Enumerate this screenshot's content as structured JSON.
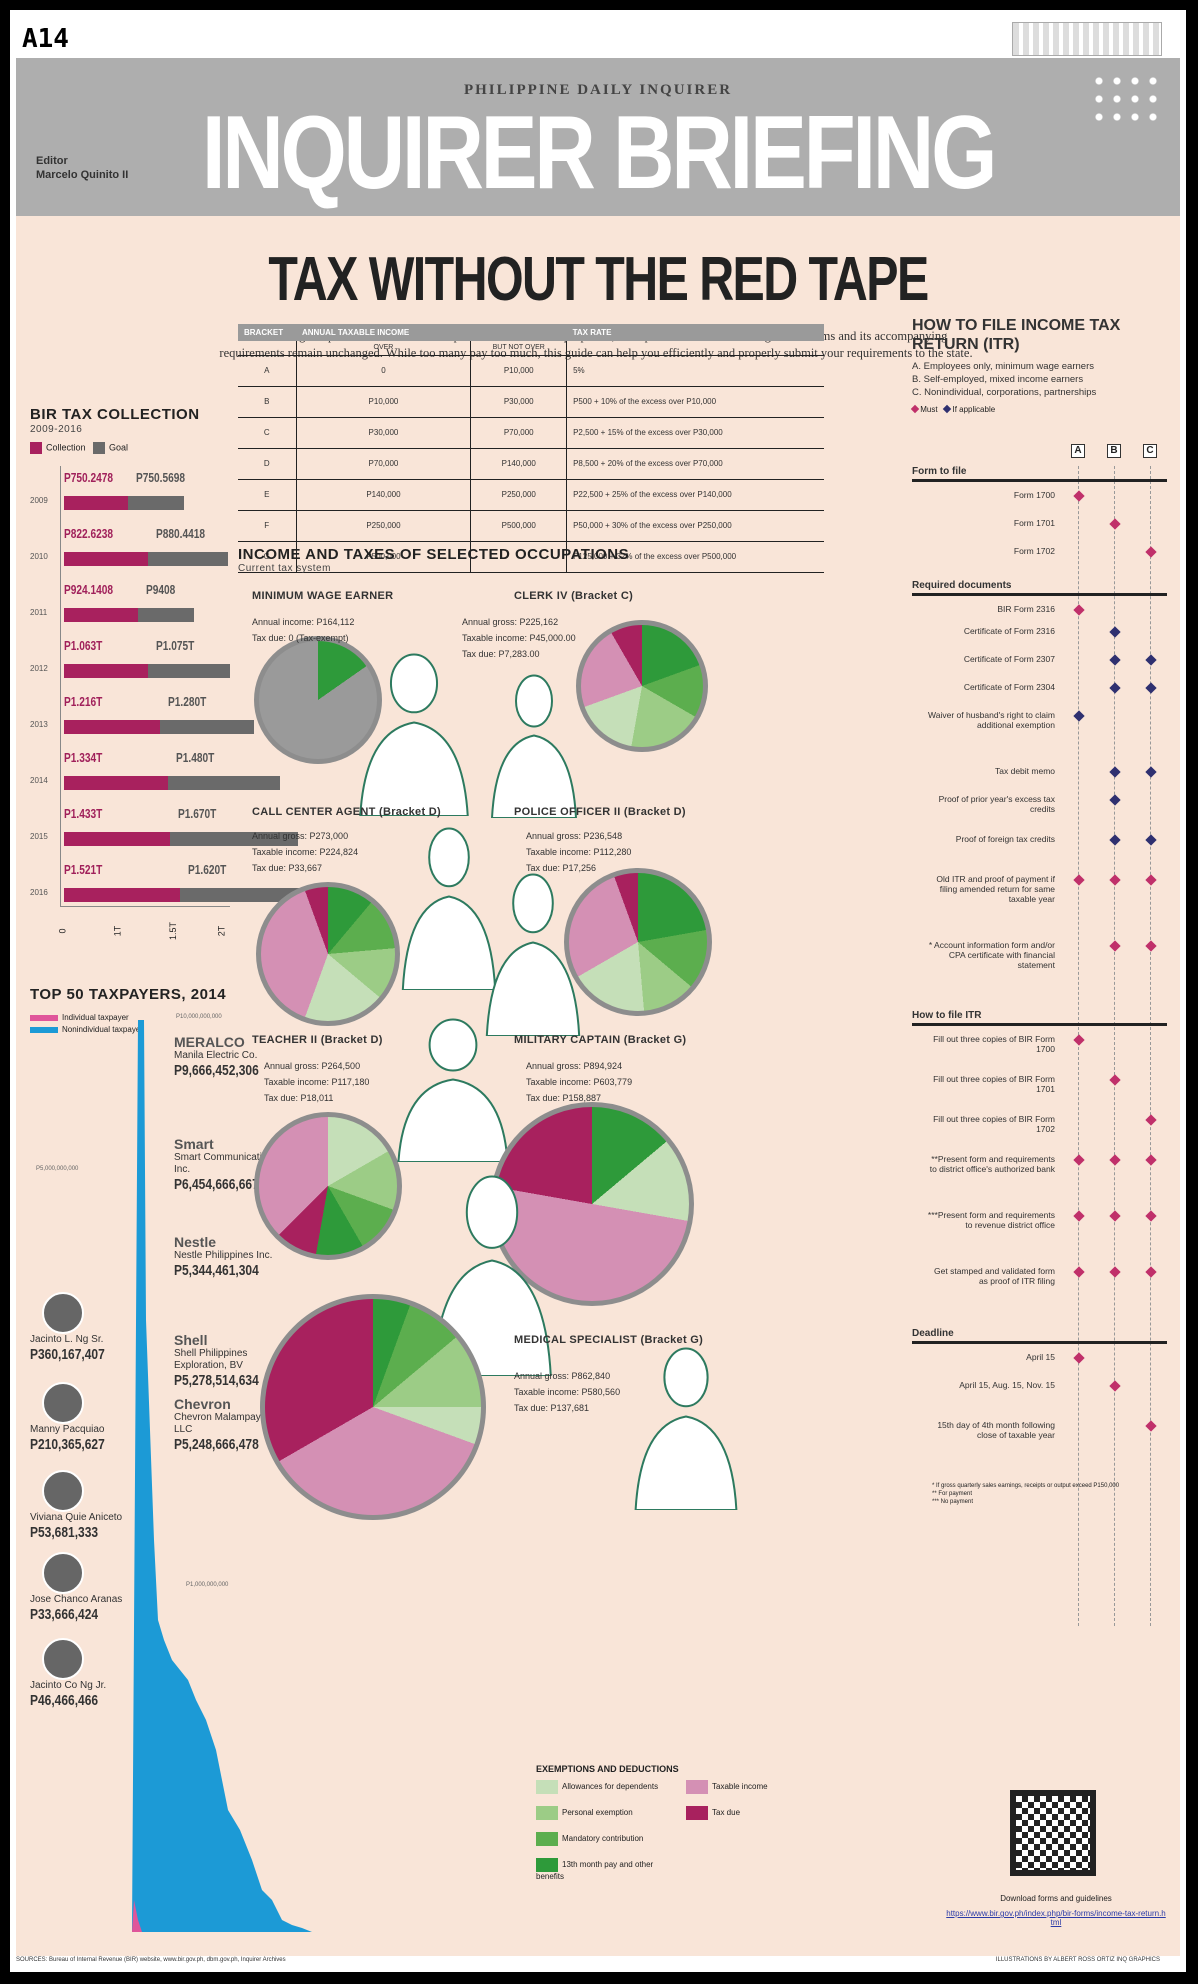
{
  "page_number": "A14",
  "header": {
    "kicker": "PHILIPPINE DAILY INQUIRER",
    "title": "INQUIRER BRIEFING",
    "editor_label": "Editor",
    "editor_name": "Marcelo Quinito II"
  },
  "headline": "TAX WITHOUT THE RED TAPE",
  "intro": "While Congress pores over the finance department's tax reform proposals, the April 15 deadline for filing of tax forms and its accompanying requirements remain unchanged. While too many pay too much, this guide can help you efficiently and properly submit your requirements to the state.",
  "bir": {
    "title": "BIR TAX COLLECTION",
    "period": "2009-2016",
    "legend_collection": "Collection",
    "legend_goal": "Goal",
    "colors": {
      "collection": "#a8215e",
      "goal": "#6a6a6a"
    },
    "rows": [
      {
        "year": "2009",
        "collection": "P750.2478",
        "goal": "P750.5698"
      },
      {
        "year": "2010",
        "collection": "P822.6238",
        "goal": "P880.4418"
      },
      {
        "year": "2011",
        "collection": "P924.1408",
        "goal": "P9408"
      },
      {
        "year": "2012",
        "collection": "P1.063T",
        "goal": "P1.075T"
      },
      {
        "year": "2013",
        "collection": "P1.216T",
        "goal": "P1.280T"
      },
      {
        "year": "2014",
        "collection": "P1.334T",
        "goal": "P1.480T"
      },
      {
        "year": "2015",
        "collection": "P1.433T",
        "goal": "P1.670T"
      },
      {
        "year": "2016",
        "collection": "P1.521T",
        "goal": "P1.620T"
      }
    ],
    "ticks": [
      "0",
      "1T",
      "1.5T",
      "2T"
    ]
  },
  "top50": {
    "title": "TOP 50 TAXPAYERS, 2014",
    "legend_individual": "Individual taxpayer",
    "legend_nonindividual": "Nonindividual taxpayer",
    "axis_top": "P10,000,000,000",
    "axis_mid": "P5,000,000,000",
    "axis_low": "P1,000,000,000",
    "companies": [
      {
        "logo": "MERALCO",
        "name": "Manila Electric Co.",
        "amount": "P9,666,452,306"
      },
      {
        "logo": "Smart",
        "name": "Smart Communications Inc.",
        "amount": "P6,454,666,667"
      },
      {
        "logo": "Nestle",
        "name": "Nestle Philippines Inc.",
        "amount": "P5,344,461,304"
      },
      {
        "logo": "Shell",
        "name": "Shell Philippines Exploration, BV",
        "amount": "P5,278,514,634"
      },
      {
        "logo": "Chevron",
        "name": "Chevron Malampaya LLC",
        "amount": "P5,248,666,478"
      }
    ],
    "individuals": [
      {
        "name": "Jacinto L. Ng Sr.",
        "amount": "P360,167,407"
      },
      {
        "name": "Manny Pacquiao",
        "amount": "P210,365,627"
      },
      {
        "name": "Viviana Quie Aniceto",
        "amount": "P53,681,333"
      },
      {
        "name": "Jose Chanco Aranas",
        "amount": "P33,666,424"
      },
      {
        "name": "Jacinto Co Ng Jr.",
        "amount": "P46,466,466"
      }
    ]
  },
  "tax_table": {
    "headers": [
      "BRACKET",
      "ANNUAL TAXABLE INCOME",
      "",
      "TAX RATE"
    ],
    "subheaders": [
      "",
      "OVER",
      "BUT NOT OVER",
      ""
    ],
    "rows": [
      [
        "A",
        "0",
        "P10,000",
        "5%"
      ],
      [
        "B",
        "P10,000",
        "P30,000",
        "P500 + 10% of the excess over P10,000"
      ],
      [
        "C",
        "P30,000",
        "P70,000",
        "P2,500 + 15% of the excess over P30,000"
      ],
      [
        "D",
        "P70,000",
        "P140,000",
        "P8,500 + 20% of the excess over P70,000"
      ],
      [
        "E",
        "P140,000",
        "P250,000",
        "P22,500 + 25% of the excess over P140,000"
      ],
      [
        "F",
        "P250,000",
        "P500,000",
        "P50,000 + 30% of the excess over P250,000"
      ],
      [
        "G",
        "P500,000",
        "",
        "P125,000 + 32% of the excess over P500,000"
      ]
    ]
  },
  "occupations": {
    "title": "INCOME AND TAXES OF SELECTED OCCUPATIONS",
    "subtitle": "Current tax system",
    "items": [
      {
        "label": "MINIMUM WAGE EARNER",
        "l1": "Annual income: P164,112",
        "l2": "Tax due: 0 (Tax-exempt)",
        "l3": ""
      },
      {
        "label": "CLERK IV (Bracket C)",
        "l1": "Annual gross: P225,162",
        "l2": "Taxable income: P45,000.00",
        "l3": "Tax due: P7,283.00"
      },
      {
        "label": "CALL CENTER AGENT (Bracket D)",
        "l1": "Annual gross: P273,000",
        "l2": "Taxable income: P224,824",
        "l3": "Tax due: P33,667"
      },
      {
        "label": "POLICE OFFICER II (Bracket D)",
        "l1": "Annual gross: P236,548",
        "l2": "Taxable income: P112,280",
        "l3": "Tax due: P17,256"
      },
      {
        "label": "TEACHER II (Bracket D)",
        "l1": "Annual gross: P264,500",
        "l2": "Taxable income: P117,180",
        "l3": "Tax due: P18,011"
      },
      {
        "label": "MILITARY CAPTAIN (Bracket G)",
        "l1": "Annual gross: P894,924",
        "l2": "Taxable income: P603,779",
        "l3": "Tax due: P158,887"
      },
      {
        "label": "MEDICAL SPECIALIST (Bracket G)",
        "l1": "Annual gross: P862,840",
        "l2": "Taxable income: P580,560",
        "l3": "Tax due: P137,681"
      }
    ],
    "legend_title": "EXEMPTIONS AND DEDUCTIONS",
    "legend": [
      {
        "label": "Allowances for dependents",
        "color": "#c5dfb8"
      },
      {
        "label": "Personal exemption",
        "color": "#9ccc86"
      },
      {
        "label": "Mandatory contribution",
        "color": "#5cae4e"
      },
      {
        "label": "13th month pay and other benefits",
        "color": "#2e9a3a"
      },
      {
        "label": "Taxable income",
        "color": "#d490b4"
      },
      {
        "label": "Tax due",
        "color": "#a8215e"
      }
    ]
  },
  "itr": {
    "title": "HOW TO FILE INCOME TAX RETURN (ITR)",
    "types": [
      "A. Employees only, minimum wage earners",
      "B. Self-employed, mixed income earners",
      "C. Nonindividual, corporations, partnerships"
    ],
    "legend_must": "Must",
    "legend_if": "If applicable",
    "cols": [
      "A",
      "B",
      "C"
    ],
    "forms_title": "Form to file",
    "forms": [
      "Form 1700",
      "Form 1701",
      "Form 1702"
    ],
    "docs_title": "Required documents",
    "docs": [
      "BIR Form 2316",
      "Certificate of Form 2316",
      "Certificate of Form 2307",
      "Certificate of Form 2304",
      "Waiver of husband's right to claim additional exemption",
      "Tax debit memo",
      "Proof of prior year's excess tax credits",
      "Proof of foreign tax credits",
      "Old ITR and proof of payment if filing amended return for same taxable year",
      "* Account information form and/or CPA certificate with financial statement"
    ],
    "how_title": "How to file ITR",
    "how": [
      "Fill out three copies of BIR Form 1700",
      "Fill out three copies of BIR Form 1701",
      "Fill out three copies of BIR Form 1702",
      "**Present form and requirements to district office's authorized bank",
      "***Present form and requirements to revenue district office",
      "Get stamped and validated form as proof of ITR filing"
    ],
    "deadline_title": "Deadline",
    "deadlines": [
      "April 15",
      "April 15, Aug. 15, Nov. 15",
      "15th day of 4th month following close of taxable year"
    ],
    "notes": [
      "* If gross quarterly sales earnings, receipts or output exceed P150,000",
      "** For payment",
      "*** No payment"
    ]
  },
  "download": {
    "text": "Download forms and guidelines",
    "link": "https://www.bir.gov.ph/index.php/bir-forms/income-tax-return.html"
  },
  "footer": {
    "sources": "SOURCES: Bureau of Internal Revenue (BIR) website, www.bir.gov.ph, dbm.gov.ph, Inquirer Archives",
    "credit": "ILLUSTRATIONS BY ALBERT ROSS ORTIZ   INQ GRAPHICS"
  }
}
